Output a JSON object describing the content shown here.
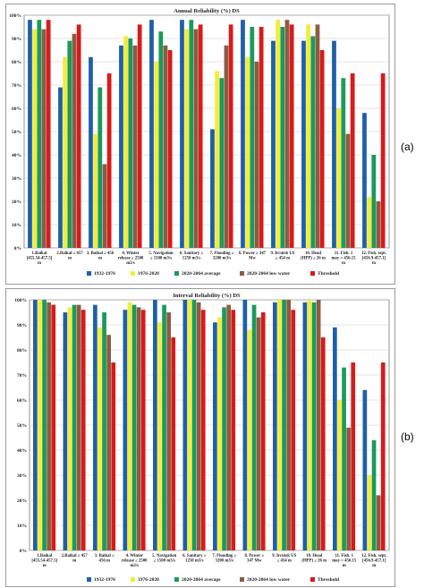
{
  "panel_labels": [
    "(a)",
    "(b)"
  ],
  "chart_data": [
    {
      "type": "bar",
      "title": "Annual Reliability (%) DS",
      "ylim": [
        0,
        100
      ],
      "yticks": [
        "0%",
        "10%",
        "20%",
        "30%",
        "40%",
        "50%",
        "60%",
        "70%",
        "80%",
        "90%",
        "100%"
      ],
      "grid": true,
      "legend_position": "bottom",
      "categories": [
        [
          "1.Baikal",
          "[455.54-457.5]",
          "m"
        ],
        [
          "2.Baikal ≥ 457",
          "m"
        ],
        [
          "3. Baikal ≥ 456",
          "m"
        ],
        [
          "4. Winter",
          "release ≥ 2500",
          "m3/s"
        ],
        [
          "5. Navigation",
          "≥ 1500 m3/s"
        ],
        [
          "6. Sanitary ≥",
          "1250 m3/s"
        ],
        [
          "7. Flooding ≥",
          "3200 m3/s"
        ],
        [
          "8. Power ≥ 347",
          "Mw"
        ],
        [
          "9. Ircutsk US",
          "≥ 454 m"
        ],
        [
          "10. Head",
          "(HPP) ≥ 26 m"
        ],
        [
          "11. Fish. 1",
          "may = 456.15",
          "m"
        ],
        [
          "12. Fish. sept.",
          "[456.9-457.1]",
          "m"
        ]
      ],
      "series": [
        {
          "name": "1932-1976",
          "color": "#1f5faa",
          "values": [
            98,
            69,
            82,
            87,
            98,
            98,
            51,
            98,
            89,
            89,
            89,
            58
          ]
        },
        {
          "name": "1976-2020",
          "color": "#f2ec3c",
          "values": [
            94,
            82,
            49,
            91,
            80,
            94,
            76,
            82,
            98,
            96,
            60,
            22
          ]
        },
        {
          "name": "2020-2064 average",
          "color": "#1b9a5a",
          "values": [
            98,
            89,
            69,
            90,
            93,
            98,
            73,
            95,
            95,
            91,
            73,
            40
          ]
        },
        {
          "name": "2020-2064 low water",
          "color": "#8d5b43",
          "values": [
            94,
            92,
            36,
            87,
            87,
            94,
            87,
            80,
            98,
            96,
            49,
            20
          ]
        },
        {
          "name": "Threshold",
          "color": "#d91a1a",
          "values": [
            98,
            96,
            75,
            96,
            85,
            96,
            96,
            95,
            96,
            85,
            75,
            75
          ]
        }
      ]
    },
    {
      "type": "bar",
      "title": "Interval Reliability (%) DS",
      "ylim": [
        0,
        100
      ],
      "yticks": [
        "0%",
        "10%",
        "20%",
        "30%",
        "40%",
        "50%",
        "60%",
        "70%",
        "80%",
        "90%",
        "100%"
      ],
      "grid": true,
      "legend_position": "bottom",
      "categories": [
        [
          "1.Baikal",
          "[455.54-457.5]",
          "m"
        ],
        [
          "2.Baikal ≥ 457",
          "m"
        ],
        [
          "3. Baikal ≥",
          "456 m"
        ],
        [
          "4. Winter",
          "release ≥ 2500",
          "m3/s"
        ],
        [
          "5. Navigation",
          "≥ 1500 m3/s"
        ],
        [
          "6. Sanitary ≥",
          "1250 m3/s"
        ],
        [
          "7. Flooding ≥",
          "3200 m3/s"
        ],
        [
          "8. Power ≥",
          "347 Mw"
        ],
        [
          "9. Ircutsk US",
          "≥ 454 m"
        ],
        [
          "10. Head",
          "(HPP) ≥ 26 m"
        ],
        [
          "11. Fish. 1",
          "may = 456.15",
          "m"
        ],
        [
          "12. Fish. sept.",
          "[456.9-457.1]",
          "m"
        ]
      ],
      "series": [
        {
          "name": "1932-1976",
          "color": "#1f5faa",
          "values": [
            100,
            95,
            98,
            96,
            100,
            100,
            91,
            100,
            99,
            99,
            89,
            64
          ]
        },
        {
          "name": "1976-2020",
          "color": "#f2ec3c",
          "values": [
            100,
            97,
            89,
            99,
            91,
            100,
            93,
            88,
            100,
            100,
            60,
            30
          ]
        },
        {
          "name": "2020-2064 average",
          "color": "#1b9a5a",
          "values": [
            100,
            98,
            95,
            98,
            98,
            100,
            97,
            98,
            100,
            99,
            73,
            44
          ]
        },
        {
          "name": "2020-2064 low water",
          "color": "#8d5b43",
          "values": [
            99,
            98,
            86,
            97,
            95,
            99,
            98,
            93,
            100,
            100,
            49,
            22
          ]
        },
        {
          "name": "Threshold",
          "color": "#d91a1a",
          "values": [
            98,
            96,
            75,
            96,
            85,
            96,
            96,
            95,
            96,
            85,
            75,
            75
          ]
        }
      ]
    }
  ]
}
